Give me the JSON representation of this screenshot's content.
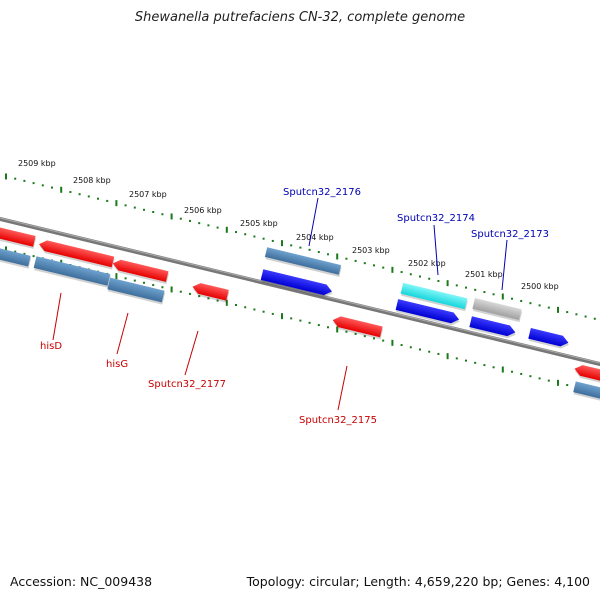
{
  "title": "Shewanella putrefaciens CN-32, complete genome",
  "footer": {
    "accession": "Accession: NC_009438",
    "summary": "Topology: circular; Length: 4,659,220 bp; Genes: 4,100"
  },
  "colors": {
    "backbone": "#808080",
    "tick": "#1a7a1a",
    "forward_gene": "#0a0ae6",
    "forward_label": "#0000b4",
    "reverse_gene": "#e60000",
    "reverse_label": "#c80000",
    "cds_steel": "#4a7fb0",
    "highlight": "#22e8ee",
    "pseudo": "#b4b4b4"
  },
  "scale_labels": [
    "2509 kbp",
    "2508 kbp",
    "2507 kbp",
    "2506 kbp",
    "2505 kbp",
    "2504 kbp",
    "2503 kbp",
    "2502 kbp",
    "2501 kbp",
    "2500 kbp"
  ],
  "gene_labels": {
    "forward": [
      "Sputcn32_2176",
      "Sputcn32_2174",
      "Sputcn32_2173"
    ],
    "reverse": [
      "hisD",
      "hisG",
      "Sputcn32_2177",
      "Sputcn32_2175"
    ]
  }
}
